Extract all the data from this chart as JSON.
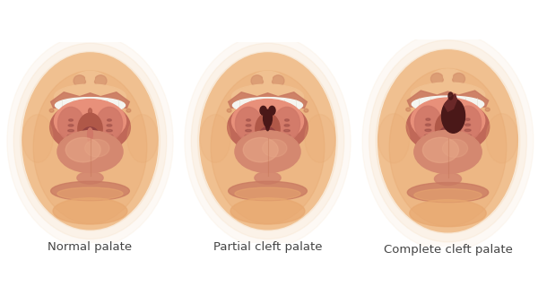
{
  "labels": [
    "Normal palate",
    "Partial cleft palate",
    "Complete cleft palate"
  ],
  "label_fontsize": 9.5,
  "bg_color": "#ffffff",
  "glow_outer": "#F5D5B0",
  "skin_face": "#F0C090",
  "skin_mid": "#E8A870",
  "skin_lip": "#D4856A",
  "skin_deep": "#C07050",
  "mouth_bg": "#C06858",
  "palate_light": "#E8907A",
  "palate_mid": "#D07868",
  "throat_bg": "#B05848",
  "throat_dark": "#904040",
  "tonsil_dark": "#7A3030",
  "tongue_base": "#D48870",
  "tongue_light": "#E8A888",
  "teeth_color": "#F5F5F0",
  "cleft_color": "#4A1818",
  "cleft_medium": "#6A2828",
  "lip_color": "#C87860",
  "nose_shadow": "#D4906A",
  "chin_color": "#E8A870"
}
